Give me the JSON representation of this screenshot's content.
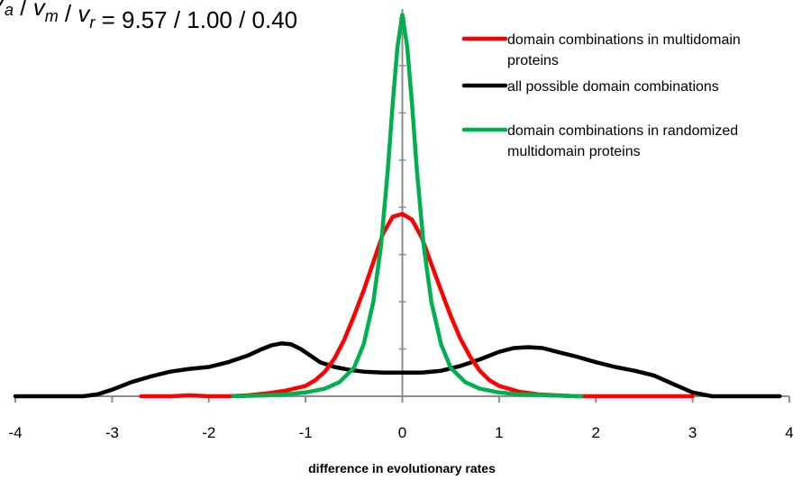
{
  "chart_data": {
    "type": "line",
    "title_parts": [
      {
        "text": "v",
        "italic": true
      },
      {
        "text": "a",
        "sub": true,
        "italic": true
      },
      {
        "text": " / "
      },
      {
        "text": "v",
        "italic": true
      },
      {
        "text": "m",
        "sub": true,
        "italic": true
      },
      {
        "text": " / "
      },
      {
        "text": "v",
        "italic": true
      },
      {
        "text": "r",
        "sub": true,
        "italic": true
      },
      {
        "text": " = 9.57 / 1.00 / 0.40"
      }
    ],
    "xlabel": "difference in evolutionary rates",
    "ylabel": "",
    "xlim": [
      -4,
      4
    ],
    "ylim": [
      0,
      0.41
    ],
    "x_ticks": [
      -4,
      -3,
      -2,
      -1,
      0,
      1,
      2,
      3,
      4
    ],
    "x_tick_labels": [
      "-4",
      "-3",
      "-2",
      "-1",
      "0",
      "1",
      "2",
      "3",
      "4"
    ],
    "y_minor_ticks": [
      0.05,
      0.1,
      0.15,
      0.2,
      0.25,
      0.3,
      0.35,
      0.4
    ],
    "grid": false,
    "legend_position": "top-right",
    "series": [
      {
        "name": "all possible domain combinations",
        "color": "#000000",
        "points": [
          [
            -4.0,
            0
          ],
          [
            -3.5,
            0
          ],
          [
            -3.3,
            0
          ],
          [
            -3.15,
            0.002
          ],
          [
            -3.0,
            0.007
          ],
          [
            -2.8,
            0.015
          ],
          [
            -2.6,
            0.021
          ],
          [
            -2.4,
            0.026
          ],
          [
            -2.2,
            0.029
          ],
          [
            -2.0,
            0.031
          ],
          [
            -1.8,
            0.036
          ],
          [
            -1.6,
            0.043
          ],
          [
            -1.45,
            0.05
          ],
          [
            -1.35,
            0.054
          ],
          [
            -1.25,
            0.056
          ],
          [
            -1.15,
            0.055
          ],
          [
            -1.05,
            0.05
          ],
          [
            -0.95,
            0.043
          ],
          [
            -0.85,
            0.036
          ],
          [
            -0.7,
            0.031
          ],
          [
            -0.55,
            0.028
          ],
          [
            -0.4,
            0.026
          ],
          [
            -0.2,
            0.025
          ],
          [
            0.0,
            0.025
          ],
          [
            0.2,
            0.025
          ],
          [
            0.4,
            0.027
          ],
          [
            0.6,
            0.032
          ],
          [
            0.8,
            0.039
          ],
          [
            1.0,
            0.047
          ],
          [
            1.15,
            0.051
          ],
          [
            1.3,
            0.052
          ],
          [
            1.45,
            0.051
          ],
          [
            1.6,
            0.047
          ],
          [
            1.8,
            0.042
          ],
          [
            2.0,
            0.036
          ],
          [
            2.2,
            0.031
          ],
          [
            2.4,
            0.027
          ],
          [
            2.6,
            0.022
          ],
          [
            2.8,
            0.013
          ],
          [
            3.0,
            0.004
          ],
          [
            3.2,
            0
          ],
          [
            3.5,
            0
          ],
          [
            3.9,
            0
          ]
        ]
      },
      {
        "name": "domain combinations in multidomain proteins",
        "color": "#ff0000",
        "points": [
          [
            -2.7,
            0
          ],
          [
            -2.4,
            0
          ],
          [
            -2.2,
            0.001
          ],
          [
            -2.0,
            0
          ],
          [
            -1.8,
            0
          ],
          [
            -1.6,
            0.001
          ],
          [
            -1.4,
            0.003
          ],
          [
            -1.2,
            0.006
          ],
          [
            -1.0,
            0.011
          ],
          [
            -0.9,
            0.017
          ],
          [
            -0.8,
            0.026
          ],
          [
            -0.7,
            0.04
          ],
          [
            -0.6,
            0.06
          ],
          [
            -0.5,
            0.085
          ],
          [
            -0.4,
            0.112
          ],
          [
            -0.3,
            0.142
          ],
          [
            -0.2,
            0.172
          ],
          [
            -0.1,
            0.19
          ],
          [
            0.0,
            0.193
          ],
          [
            0.1,
            0.187
          ],
          [
            0.2,
            0.168
          ],
          [
            0.3,
            0.14
          ],
          [
            0.4,
            0.112
          ],
          [
            0.5,
            0.085
          ],
          [
            0.6,
            0.061
          ],
          [
            0.7,
            0.042
          ],
          [
            0.8,
            0.027
          ],
          [
            0.9,
            0.017
          ],
          [
            1.0,
            0.011
          ],
          [
            1.2,
            0.005
          ],
          [
            1.4,
            0.002
          ],
          [
            1.6,
            0.001
          ],
          [
            1.8,
            0
          ],
          [
            2.2,
            0
          ],
          [
            2.6,
            0
          ],
          [
            3.0,
            0
          ]
        ]
      },
      {
        "name": "domain combinations in randomized multidomain proteins",
        "color": "#00b050",
        "points": [
          [
            -1.75,
            0
          ],
          [
            -1.4,
            0.001
          ],
          [
            -1.2,
            0.002
          ],
          [
            -1.0,
            0.004
          ],
          [
            -0.8,
            0.008
          ],
          [
            -0.65,
            0.015
          ],
          [
            -0.5,
            0.03
          ],
          [
            -0.4,
            0.055
          ],
          [
            -0.3,
            0.1
          ],
          [
            -0.22,
            0.16
          ],
          [
            -0.15,
            0.24
          ],
          [
            -0.1,
            0.31
          ],
          [
            -0.05,
            0.37
          ],
          [
            0.0,
            0.404
          ],
          [
            0.05,
            0.37
          ],
          [
            0.1,
            0.31
          ],
          [
            0.15,
            0.24
          ],
          [
            0.22,
            0.16
          ],
          [
            0.3,
            0.1
          ],
          [
            0.4,
            0.055
          ],
          [
            0.5,
            0.03
          ],
          [
            0.65,
            0.015
          ],
          [
            0.8,
            0.008
          ],
          [
            1.0,
            0.004
          ],
          [
            1.2,
            0.002
          ],
          [
            1.5,
            0.001
          ],
          [
            1.85,
            0
          ]
        ]
      }
    ]
  }
}
